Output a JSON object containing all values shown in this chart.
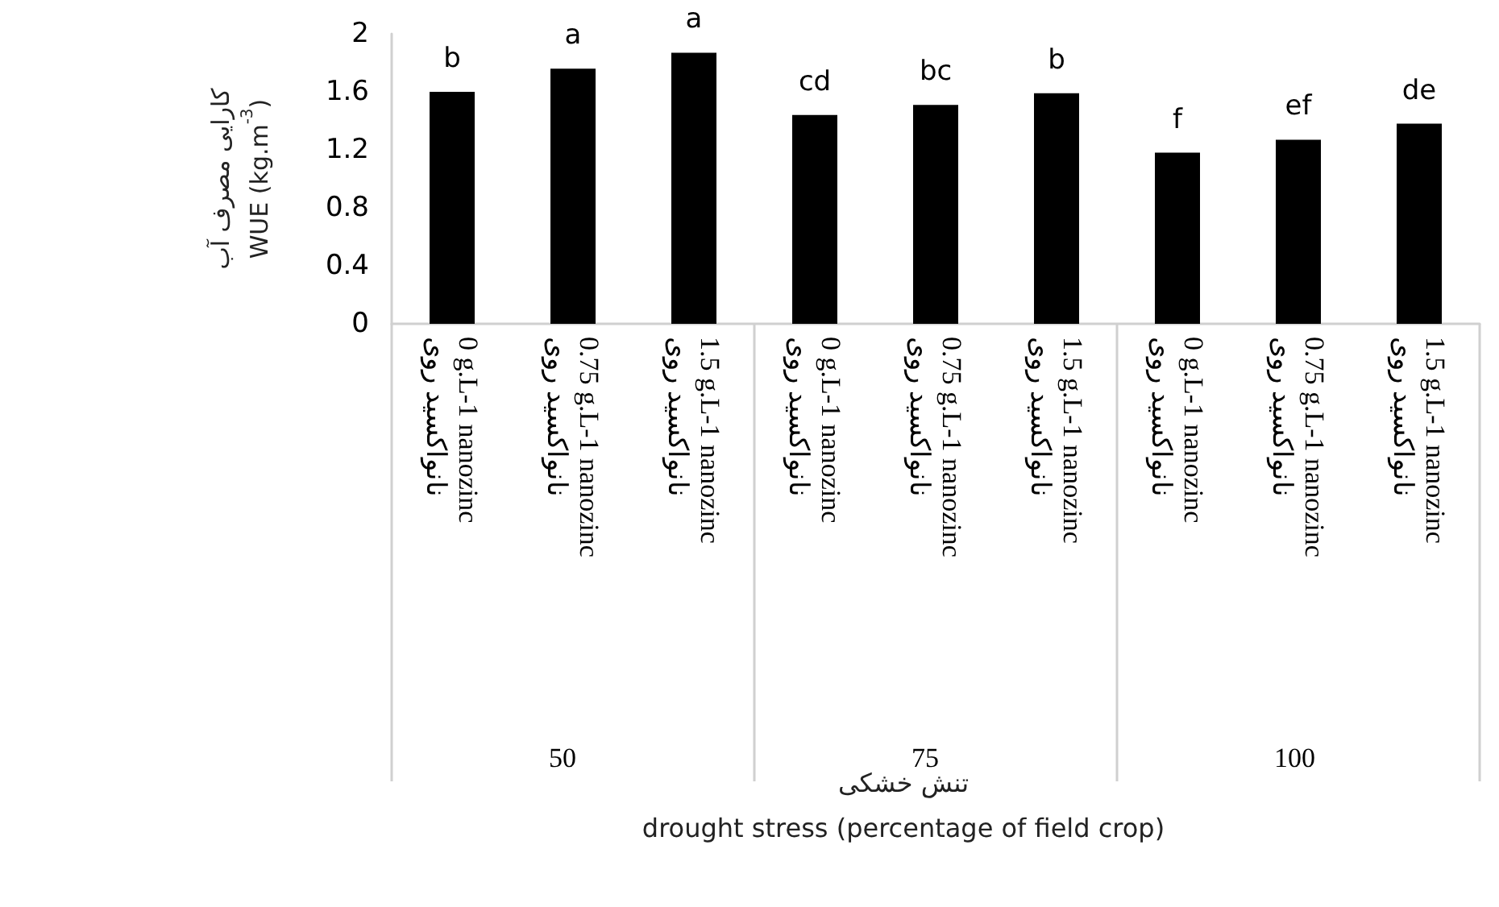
{
  "chart_data": {
    "type": "bar",
    "ylabel": "کارایی مصرف آب\nWUE (kg.m$^{-3}$)",
    "categories": [
      "0 g.L-1 nanozinc\nنانواکسید روی",
      "0.75 g.L-1 nanozinc\nنانواکسید روی",
      "1.5 g.L-1 nanozinc\nنانواکسید روی",
      "0 g.L-1 nanozinc\nنانواکسید روی",
      "0.75 g.L-1 nanozinc\nنانواکسید روی",
      "1.5 g.L-1 nanozinc\nنانواکسید روی",
      "0 g.L-1 nanozinc\nنانواکسید روی",
      "0.75 g.L-1 nanozinc\nنانواکسید روی",
      "1.5 g.L-1 nanozinc\nنانواکسید روی"
    ],
    "values": [
      1.6,
      1.76,
      1.87,
      1.44,
      1.51,
      1.59,
      1.18,
      1.27,
      1.38
    ],
    "value_labels": [
      "b",
      "a",
      "a",
      "cd",
      "bc",
      "b",
      "f",
      "ef",
      "de"
    ],
    "color": "#000000",
    "ylim": [
      0,
      2
    ],
    "yticks": [
      0,
      0.4,
      0.8,
      1.2,
      1.6,
      2
    ],
    "grid": false,
    "annotations": [
      "50",
      "75",
      "100",
      "تنش خشکی\ndrought stress (percentage of field crop)"
    ]
  }
}
